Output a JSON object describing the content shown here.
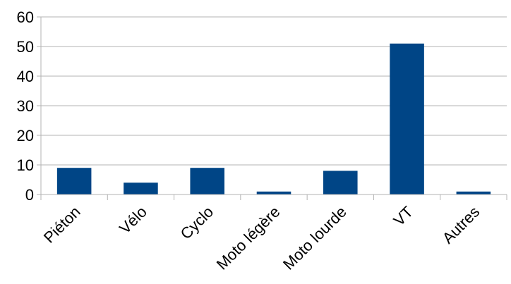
{
  "chart_data": {
    "type": "bar",
    "categories": [
      "Piéton",
      "Vélo",
      "Cyclo",
      "Moto légère",
      "Moto lourde",
      "VT",
      "Autres"
    ],
    "values": [
      9,
      4,
      9,
      1,
      8,
      51,
      1
    ],
    "ylim": [
      0,
      60
    ],
    "yticks": [
      0,
      10,
      20,
      30,
      40,
      50,
      60
    ],
    "ytick_labels": [
      "0",
      "10",
      "20",
      "30",
      "40",
      "50",
      "60"
    ],
    "grid": true,
    "bar_color": "#004586",
    "grid_color": "#b3b3b3",
    "axis_color": "#b3b3b3"
  }
}
